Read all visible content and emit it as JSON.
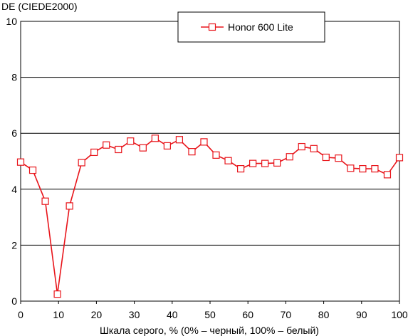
{
  "chart_data": {
    "type": "line",
    "ylabel": "DE (CIEDE2000)",
    "xlabel": "Шкала серого, % (0% – черный, 100% – белый)",
    "xlim": [
      0,
      100
    ],
    "ylim": [
      0,
      10
    ],
    "x_ticks": [
      "0",
      "10",
      "20",
      "30",
      "40",
      "50",
      "60",
      "70",
      "80",
      "90",
      "100"
    ],
    "y_ticks": [
      "0",
      "2",
      "4",
      "6",
      "8",
      "10"
    ],
    "grid": "horizontal",
    "legend_position": "top-center",
    "series": [
      {
        "name": "Honor 600 Lite",
        "color": "#e8141a",
        "marker": "square-open",
        "x": [
          0,
          3.2,
          6.5,
          9.7,
          12.9,
          16.1,
          19.4,
          22.6,
          25.8,
          29.0,
          32.3,
          35.5,
          38.7,
          41.9,
          45.2,
          48.4,
          51.6,
          54.8,
          58.1,
          61.3,
          64.5,
          67.7,
          71.0,
          74.2,
          77.4,
          80.6,
          83.9,
          87.1,
          90.3,
          93.5,
          96.8,
          100
        ],
        "y": [
          4.97,
          4.68,
          3.57,
          0.25,
          3.4,
          4.95,
          5.32,
          5.58,
          5.42,
          5.72,
          5.48,
          5.82,
          5.55,
          5.77,
          5.34,
          5.69,
          5.22,
          5.02,
          4.73,
          4.92,
          4.92,
          4.94,
          5.16,
          5.52,
          5.45,
          5.14,
          5.11,
          4.75,
          4.73,
          4.73,
          4.52,
          5.13
        ]
      }
    ]
  }
}
